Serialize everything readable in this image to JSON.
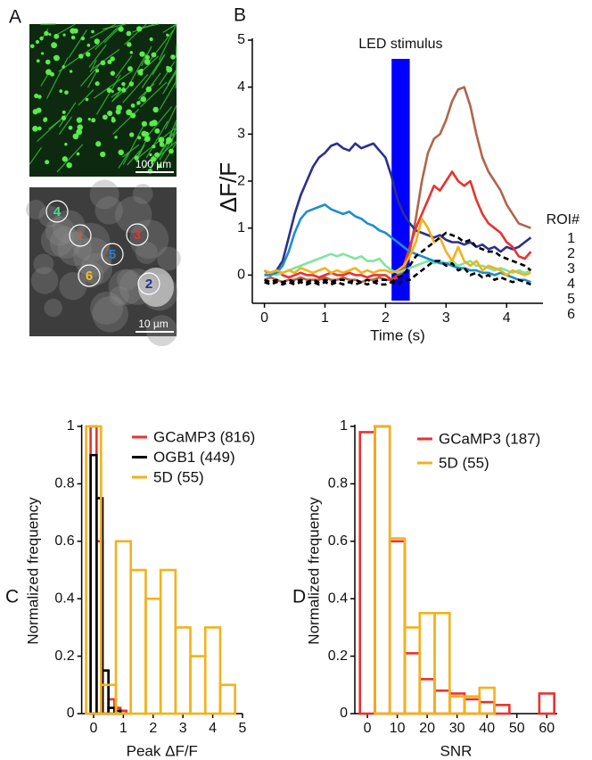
{
  "panel_labels": [
    "A",
    "B",
    "C",
    "D"
  ],
  "images": {
    "scale_bars": [
      "100 µm",
      "10 µm"
    ],
    "rois": [
      {
        "label": "4",
        "color": "#3fe08a"
      },
      {
        "label": "1",
        "color": "#b0654a"
      },
      {
        "label": "3",
        "color": "#e8332e"
      },
      {
        "label": "5",
        "color": "#2a7fd0"
      },
      {
        "label": "6",
        "color": "#f2c21b"
      },
      {
        "label": "2",
        "color": "#2b2f8f"
      }
    ]
  },
  "chart_data": [
    {
      "type": "line",
      "y_label": "ΔF/F",
      "x_label": "Time (s)",
      "stimulus": {
        "label": "LED stimulus",
        "start": 2.1,
        "end": 2.4,
        "color": "#0000ff"
      },
      "legend_title": "ROI#",
      "xlim": [
        -0.2,
        4.6
      ],
      "xticks": [
        0,
        1,
        2,
        3,
        4
      ],
      "ylim": [
        -0.6,
        5
      ],
      "yticks": [
        0,
        1,
        2,
        3,
        4,
        5
      ],
      "x": [
        0,
        0.1,
        0.2,
        0.3,
        0.4,
        0.5,
        0.6,
        0.7,
        0.8,
        0.9,
        1,
        1.1,
        1.2,
        1.3,
        1.4,
        1.5,
        1.6,
        1.7,
        1.8,
        1.9,
        2,
        2.1,
        2.2,
        2.3,
        2.4,
        2.5,
        2.6,
        2.7,
        2.8,
        2.9,
        3,
        3.1,
        3.2,
        3.3,
        3.4,
        3.5,
        3.6,
        3.7,
        3.8,
        3.9,
        4,
        4.1,
        4.2,
        4.3,
        4.4
      ],
      "series": [
        {
          "name": "1",
          "color": "#b0654a",
          "values": [
            -0.1,
            -0.05,
            -0.1,
            -0.15,
            -0.1,
            -0.1,
            -0.05,
            -0.1,
            -0.1,
            -0.1,
            -0.05,
            -0.1,
            -0.1,
            -0.05,
            -0.1,
            -0.1,
            -0.15,
            -0.1,
            -0.1,
            -0.05,
            -0.1,
            -0.1,
            -0.05,
            0.1,
            0.5,
            1.2,
            2.0,
            2.6,
            2.9,
            3.0,
            3.3,
            3.7,
            3.95,
            4.0,
            3.6,
            3.0,
            2.5,
            2.2,
            2.0,
            1.8,
            1.5,
            1.3,
            1.1,
            1.05,
            1.0
          ]
        },
        {
          "name": "2",
          "color": "#2b2f8f",
          "values": [
            0,
            0.05,
            0.1,
            0.3,
            0.8,
            1.3,
            1.7,
            2.0,
            2.3,
            2.5,
            2.6,
            2.75,
            2.8,
            2.7,
            2.65,
            2.8,
            2.7,
            2.75,
            2.8,
            2.65,
            2.5,
            2.1,
            1.6,
            1.3,
            1.1,
            0.95,
            0.9,
            0.85,
            0.8,
            0.85,
            0.75,
            0.7,
            0.7,
            0.65,
            0.7,
            0.6,
            0.65,
            0.55,
            0.6,
            0.5,
            0.6,
            0.55,
            0.6,
            0.7,
            0.8
          ]
        },
        {
          "name": "3",
          "color": "#e8332e",
          "values": [
            0.1,
            0,
            0.1,
            0,
            -0.05,
            0,
            0.05,
            0,
            0,
            -0.05,
            0,
            0.05,
            0,
            0,
            0.05,
            0,
            0,
            -0.05,
            0,
            0,
            0,
            -0.1,
            0,
            0.2,
            0.6,
            1.0,
            1.3,
            1.6,
            1.9,
            1.8,
            2.0,
            2.2,
            2.0,
            1.9,
            2.0,
            1.6,
            1.3,
            1.1,
            1.0,
            0.9,
            0.7,
            0.6,
            0.4,
            0.35,
            0.5
          ]
        },
        {
          "name": "4",
          "color": "#7fe5a0",
          "values": [
            0,
            0.05,
            0,
            0.05,
            0.1,
            0.15,
            0.2,
            0.25,
            0.3,
            0.35,
            0.4,
            0.45,
            0.4,
            0.45,
            0.4,
            0.35,
            0.4,
            0.3,
            0.3,
            0.35,
            0.2,
            0.1,
            0.05,
            0.1,
            0.15,
            0.2,
            0.25,
            0.3,
            0.25,
            0.3,
            0.25,
            0.3,
            0.2,
            0.25,
            0.3,
            0.2,
            0.2,
            0.15,
            0.1,
            0.15,
            0.1,
            0.05,
            0.1,
            0.05,
            0.1
          ]
        },
        {
          "name": "5",
          "color": "#1f8dc8",
          "values": [
            0,
            0,
            0.05,
            0.2,
            0.5,
            0.9,
            1.2,
            1.35,
            1.4,
            1.45,
            1.5,
            1.4,
            1.35,
            1.3,
            1.35,
            1.25,
            1.2,
            1.1,
            1.05,
            0.95,
            0.9,
            0.8,
            0.7,
            0.6,
            0.5,
            0.45,
            0.4,
            0.35,
            0.3,
            0.25,
            0.25,
            0.2,
            0.15,
            0.15,
            0.1,
            0.1,
            0.05,
            0.05,
            0,
            0.05,
            0,
            -0.05,
            -0.1,
            -0.1,
            -0.15
          ]
        },
        {
          "name": "6",
          "color": "#f2b21b",
          "values": [
            0.1,
            0.05,
            0.1,
            0.05,
            0.1,
            0.05,
            0.15,
            0.1,
            0.05,
            0.1,
            0.15,
            0.05,
            0.1,
            0.05,
            0.1,
            0.15,
            0.05,
            0.1,
            0.05,
            0.1,
            0.1,
            0.05,
            0.1,
            0.2,
            0.4,
            0.7,
            1.2,
            1.0,
            0.7,
            0.8,
            0.5,
            0.3,
            0.6,
            0.3,
            0.2,
            0.3,
            0.1,
            0.2,
            0.15,
            0.1,
            0.0,
            0.1,
            0.05,
            0.0,
            0.05
          ]
        },
        {
          "color": "#000000",
          "dashed": true,
          "values": [
            -0.1,
            -0.15,
            -0.1,
            -0.15,
            -0.1,
            -0.15,
            -0.1,
            -0.15,
            -0.1,
            -0.15,
            -0.1,
            -0.15,
            -0.1,
            -0.1,
            -0.15,
            -0.1,
            -0.15,
            -0.1,
            -0.15,
            -0.1,
            -0.1,
            -0.15,
            -0.05,
            0,
            0.2,
            0.4,
            0.5,
            0.6,
            0.7,
            0.8,
            0.9,
            0.85,
            0.8,
            0.7,
            0.75,
            0.6,
            0.55,
            0.5,
            0.5,
            0.4,
            0.35,
            0.3,
            0.25,
            0.2,
            0.1
          ]
        },
        {
          "color": "#000000",
          "dashed": true,
          "values": [
            -0.15,
            -0.2,
            -0.15,
            -0.2,
            -0.15,
            -0.2,
            -0.15,
            -0.2,
            -0.15,
            -0.2,
            -0.15,
            -0.2,
            -0.15,
            -0.2,
            -0.15,
            -0.2,
            -0.15,
            -0.2,
            -0.15,
            -0.2,
            -0.2,
            -0.15,
            -0.2,
            -0.1,
            -0.1,
            0,
            0.1,
            0.2,
            0.3,
            0.3,
            0.2,
            0.25,
            0.1,
            0.15,
            0.0,
            0.05,
            -0.05,
            0,
            -0.1,
            -0.05,
            -0.1,
            -0.15,
            -0.1,
            -0.15,
            -0.2
          ]
        }
      ]
    },
    {
      "type": "histogram",
      "y_label": "Normalized frequency",
      "x_label": "Peak ΔF/F",
      "xlim": [
        -0.4,
        5
      ],
      "xticks": [
        0,
        1,
        2,
        3,
        4,
        5
      ],
      "ylim": [
        0,
        1
      ],
      "yticks": [
        0,
        0.2,
        0.4,
        0.6,
        0.8,
        1
      ],
      "series": [
        {
          "name": "GCaMP3 (816)",
          "color": "#e8332e",
          "bins": [
            -0.1,
            0.1,
            0.3,
            0.5,
            0.7,
            0.9,
            1.1
          ],
          "counts": [
            1.0,
            0.6,
            0.15,
            0.05,
            0.02,
            0.01
          ]
        },
        {
          "name": "OGB1 (449)",
          "color": "#000000",
          "bins": [
            -0.1,
            0.1,
            0.3,
            0.5,
            0.7,
            0.9
          ],
          "counts": [
            0.9,
            0.75,
            0.15,
            0.02,
            0.01
          ]
        },
        {
          "name": "5D (55)",
          "color": "#f2b21b",
          "bins": [
            -0.25,
            0.25,
            0.75,
            1.25,
            1.75,
            2.25,
            2.75,
            3.25,
            3.75,
            4.25,
            4.75
          ],
          "counts": [
            1.0,
            0.1,
            0.6,
            0.5,
            0.4,
            0.5,
            0.3,
            0.2,
            0.3,
            0.1
          ]
        }
      ]
    },
    {
      "type": "histogram",
      "y_label": "Normalized frequency",
      "x_label": "SNR",
      "xlim": [
        -4.2,
        63.5
      ],
      "xticks": [
        0,
        10,
        20,
        30,
        40,
        50,
        60
      ],
      "ylim": [
        0,
        1
      ],
      "yticks": [
        0,
        0.2,
        0.4,
        0.6,
        0.8,
        1
      ],
      "series": [
        {
          "name": "GCaMP3 (187)",
          "color": "#e8332e",
          "bins": [
            -2.5,
            2.5,
            7.5,
            12.5,
            17.5,
            22.5,
            27.5,
            32.5,
            37.5,
            42.5,
            47.5,
            52.5,
            57.5,
            62.5
          ],
          "counts": [
            0.98,
            1.0,
            0.6,
            0.21,
            0.12,
            0.08,
            0.07,
            0.05,
            0.04,
            0.03,
            0,
            0,
            0.07
          ]
        },
        {
          "name": "5D (55)",
          "color": "#f2b21b",
          "bins": [
            2.5,
            7.5,
            12.5,
            17.5,
            22.5,
            27.5,
            32.5,
            37.5,
            42.5
          ],
          "counts": [
            1.0,
            0.61,
            0.3,
            0.35,
            0.35,
            0.06,
            0.06,
            0.09
          ]
        }
      ]
    }
  ]
}
